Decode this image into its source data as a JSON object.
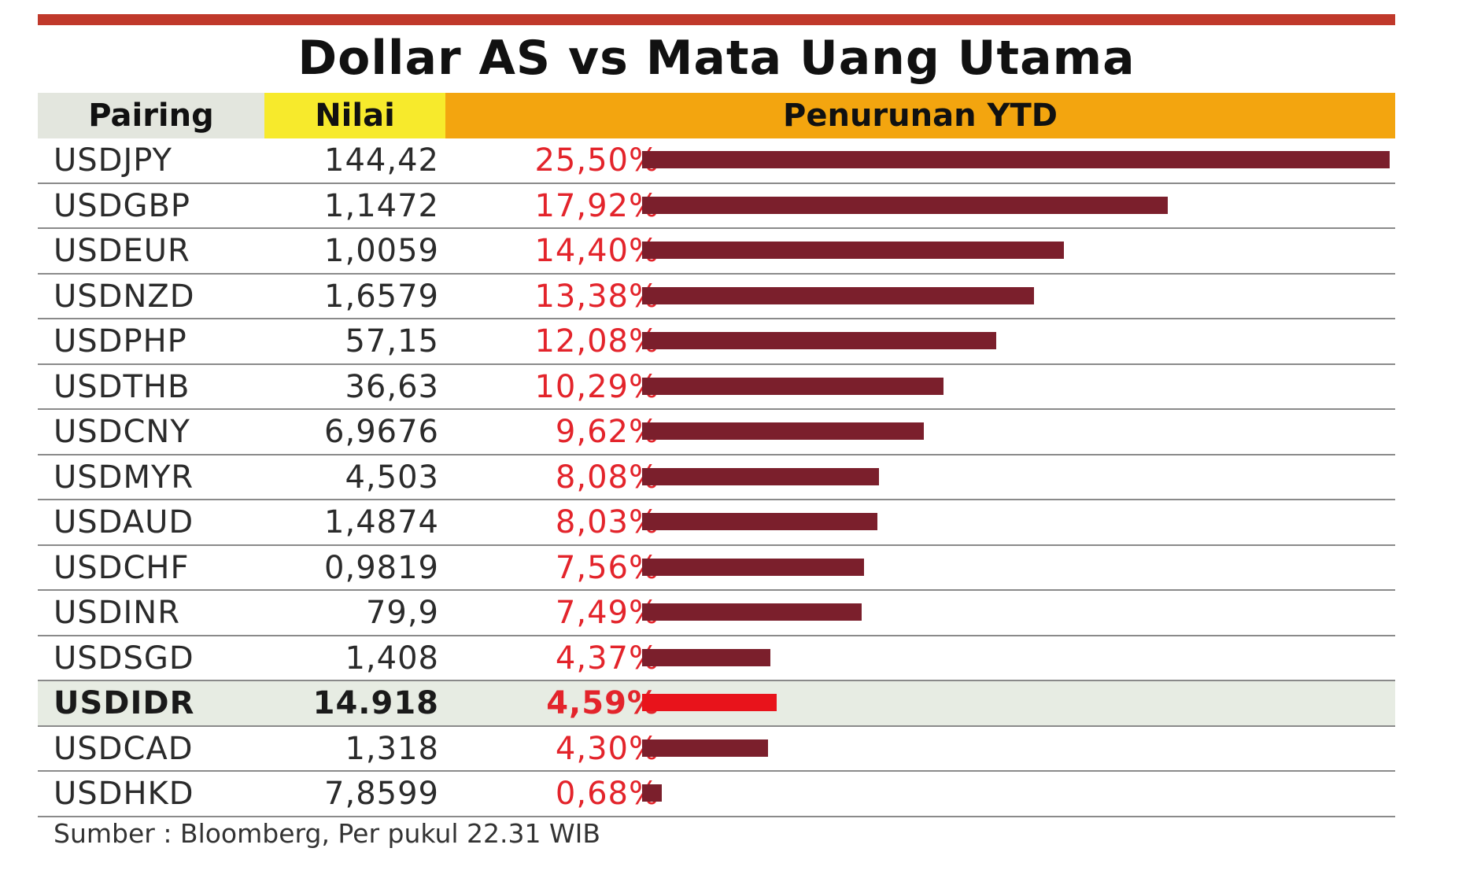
{
  "title": "Dollar AS vs Mata Uang Utama",
  "colors": {
    "top_rule": "#c0392b",
    "bar": "#7b1f2c",
    "bar_highlight": "#e8131b",
    "percent_text": "#e3242b",
    "header_pairing_bg": "#e3e6de",
    "header_nilai_bg": "#f7ea2c",
    "header_ytd_bg": "#f3a50f"
  },
  "chart_data": {
    "type": "bar",
    "title": "Dollar AS vs Mata Uang Utama",
    "columns": [
      "Pairing",
      "Nilai",
      "Penurunan YTD"
    ],
    "categories": [
      "USDJPY",
      "USDGBP",
      "USDEUR",
      "USDNZD",
      "USDPHP",
      "USDTHB",
      "USDCNY",
      "USDMYR",
      "USDAUD",
      "USDCHF",
      "USDINR",
      "USDSGD",
      "USDIDR",
      "USDCAD",
      "USDHKD"
    ],
    "nilai": [
      "144,42",
      "1,1472",
      "1,0059",
      "1,6579",
      "57,15",
      "36,63",
      "6,9676",
      "4,503",
      "1,4874",
      "0,9819",
      "79,9",
      "1,408",
      "14.918",
      "1,318",
      "7,8599"
    ],
    "values_label": [
      "25,50%",
      "17,92%",
      "14,40%",
      "13,38%",
      "12,08%",
      "10,29%",
      "9,62%",
      "8,08%",
      "8,03%",
      "7,56%",
      "7,49%",
      "4,37%",
      "4,59%",
      "4,30%",
      "0,68%"
    ],
    "values": [
      25.5,
      17.92,
      14.4,
      13.38,
      12.08,
      10.29,
      9.62,
      8.08,
      8.03,
      7.56,
      7.49,
      4.37,
      4.59,
      4.3,
      0.68
    ],
    "highlight": "USDIDR",
    "xlim": [
      0,
      25.5
    ],
    "source": "Sumber : Bloomberg, Per pukul 22.31 WIB"
  }
}
